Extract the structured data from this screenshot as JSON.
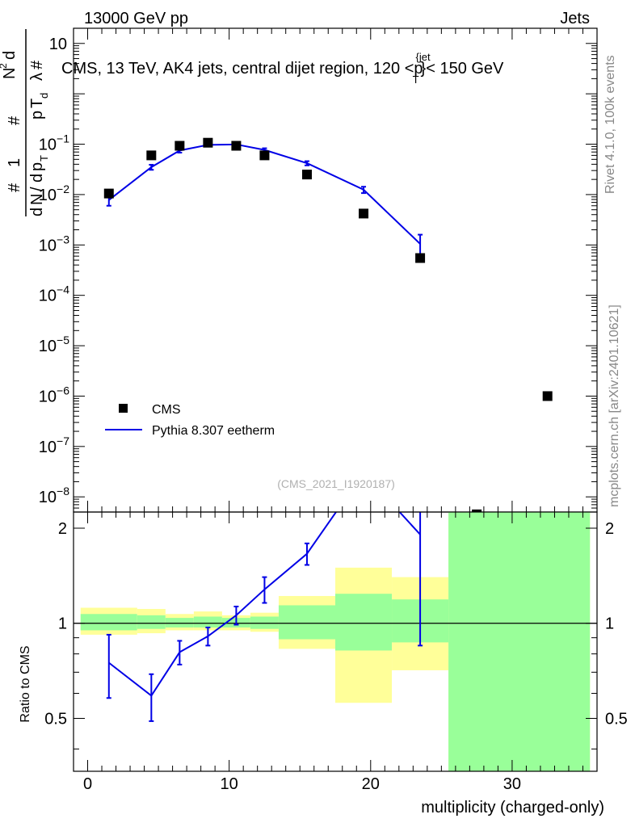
{
  "header": {
    "left": "13000 GeV pp",
    "right": "Jets"
  },
  "plot_title": {
    "main": "CMS, 13 TeV, AK4 jets, central dijet region, 120 <p",
    "sub": "T",
    "sup": "{jet",
    "tail": "}< 150 GeV"
  },
  "side_text": {
    "rivet": "Rivet 4.1.0,  100k events",
    "mcplots": "mcplots.cern.ch [arXiv:2401.10621]"
  },
  "watermark": "(CMS_2021_I1920187)",
  "colors": {
    "data": "#000000",
    "mc": "#0000e6",
    "band_inner": "#99ff99",
    "band_outer": "#ffff99"
  },
  "chart_data": [
    {
      "type": "scatter",
      "panel": "main",
      "ylabel_parts": [
        "1",
        "N",
        "d",
        "p",
        "T",
        "#",
        "d",
        "N",
        "d",
        "p",
        "T",
        "d",
        "λ",
        "#",
        "2",
        "/",
        "#"
      ],
      "yscale": "log",
      "ylim": [
        5e-09,
        20
      ],
      "xlim": [
        -1,
        36
      ],
      "ytick_labels": [
        "10",
        "10",
        "10",
        "10",
        "10",
        "10",
        "10",
        "10",
        "10",
        "10"
      ],
      "ytick_exponents": [
        "",
        "−1",
        "−2",
        "−3",
        "−4",
        "−5",
        "−6",
        "−7",
        "−8",
        ""
      ],
      "ytick_values": [
        10,
        0.1,
        0.01,
        0.001,
        0.0001,
        1e-05,
        1e-06,
        1e-07,
        1e-08
      ],
      "legend_position": "bottom-left",
      "series": [
        {
          "name": "CMS",
          "style": "markers",
          "x": [
            1.5,
            4.5,
            6.5,
            8.5,
            10.5,
            12.5,
            15.5,
            19.5,
            23.5,
            27.5,
            32.5
          ],
          "y": [
            0.0105,
            0.06,
            0.093,
            0.107,
            0.093,
            0.06,
            0.025,
            0.0042,
            0.00055,
            4.5e-09,
            1e-06
          ]
        },
        {
          "name": "Pythia 8.307 eetherm",
          "style": "line",
          "x": [
            1.5,
            4.5,
            6.5,
            8.5,
            10.5,
            12.5,
            15.5,
            19.5,
            23.5
          ],
          "y": [
            0.0078,
            0.035,
            0.075,
            0.097,
            0.099,
            0.077,
            0.042,
            0.0125,
            0.00105
          ],
          "yerr": [
            0.0018,
            0.004,
            0.007,
            0.006,
            0.006,
            0.006,
            0.004,
            0.0018,
            0.00055
          ]
        }
      ]
    },
    {
      "type": "line",
      "panel": "ratio",
      "ylabel": "Ratio to CMS",
      "ylim": [
        0.34,
        2.25
      ],
      "xlim": [
        -1,
        36
      ],
      "xlabel": "multiplicity (charged-only)",
      "xtick_labels": [
        "0",
        "10",
        "20",
        "30"
      ],
      "xtick_values": [
        0,
        10,
        20,
        30
      ],
      "ytick_labels": [
        "0.5",
        "1",
        "2"
      ],
      "ytick_values": [
        0.5,
        1,
        2
      ],
      "reference": 1,
      "bands": [
        {
          "x0": -0.5,
          "x1": 3.5,
          "inner": [
            0.95,
            1.07
          ],
          "outer": [
            0.92,
            1.12
          ]
        },
        {
          "x0": 3.5,
          "x1": 5.5,
          "inner": [
            0.96,
            1.06
          ],
          "outer": [
            0.93,
            1.11
          ]
        },
        {
          "x0": 5.5,
          "x1": 7.5,
          "inner": [
            0.97,
            1.04
          ],
          "outer": [
            0.95,
            1.07
          ]
        },
        {
          "x0": 7.5,
          "x1": 9.5,
          "inner": [
            0.97,
            1.05
          ],
          "outer": [
            0.95,
            1.09
          ]
        },
        {
          "x0": 9.5,
          "x1": 11.5,
          "inner": [
            0.97,
            1.04
          ],
          "outer": [
            0.95,
            1.06
          ]
        },
        {
          "x0": 11.5,
          "x1": 13.5,
          "inner": [
            0.96,
            1.05
          ],
          "outer": [
            0.94,
            1.08
          ]
        },
        {
          "x0": 13.5,
          "x1": 17.5,
          "inner": [
            0.89,
            1.14
          ],
          "outer": [
            0.83,
            1.22
          ]
        },
        {
          "x0": 17.5,
          "x1": 21.5,
          "inner": [
            0.82,
            1.24
          ],
          "outer": [
            0.56,
            1.5
          ]
        },
        {
          "x0": 21.5,
          "x1": 25.5,
          "inner": [
            0.87,
            1.19
          ],
          "outer": [
            0.71,
            1.4
          ]
        },
        {
          "x0": 25.5,
          "x1": 35.5,
          "inner": [
            0.34,
            2.25
          ],
          "outer": [
            0.34,
            2.25
          ]
        }
      ],
      "series": [
        {
          "name": "Pythia 8.307 eetherm",
          "x": [
            1.5,
            4.5,
            6.5,
            8.5,
            10.5,
            12.5,
            15.5,
            19.5,
            23.5
          ],
          "y": [
            0.75,
            0.59,
            0.81,
            0.91,
            1.06,
            1.28,
            1.66,
            3.0,
            1.91
          ],
          "yerr": [
            0.17,
            0.1,
            0.07,
            0.06,
            0.07,
            0.12,
            0.13,
            0.4,
            1.06
          ]
        }
      ]
    }
  ]
}
